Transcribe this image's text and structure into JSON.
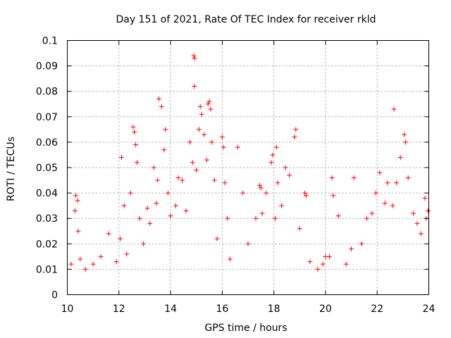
{
  "chart_data": {
    "type": "scatter",
    "title": "Day 151 of 2021, Rate Of TEC Index for receiver rkld",
    "xlabel": "GPS time / hours",
    "ylabel": "ROTI / TECUs",
    "xlim": [
      10,
      24
    ],
    "ylim": [
      0,
      0.1
    ],
    "x_ticks": [
      10,
      12,
      14,
      16,
      18,
      20,
      22,
      24
    ],
    "y_ticks": [
      0,
      0.01,
      0.02,
      0.03,
      0.04,
      0.05,
      0.06,
      0.07,
      0.08,
      0.09,
      0.1
    ],
    "x_tick_labels": [
      "10",
      "12",
      "14",
      "16",
      "18",
      "20",
      "22",
      "24"
    ],
    "y_tick_labels": [
      "0",
      "0.01",
      "0.02",
      "0.03",
      "0.04",
      "0.05",
      "0.06",
      "0.07",
      "0.08",
      "0.09",
      "0.1"
    ],
    "grid": true,
    "marker": "+",
    "marker_color": "#ff0000",
    "series": [
      {
        "name": "ROTI",
        "x": [
          10.15,
          10.3,
          10.33,
          10.4,
          10.42,
          10.5,
          10.7,
          11.0,
          11.3,
          11.6,
          11.9,
          12.05,
          12.1,
          12.2,
          12.3,
          12.45,
          12.55,
          12.6,
          12.65,
          12.7,
          12.8,
          12.95,
          13.1,
          13.2,
          13.35,
          13.45,
          13.5,
          13.55,
          13.65,
          13.75,
          13.8,
          13.9,
          14.0,
          14.2,
          14.3,
          14.45,
          14.6,
          14.75,
          14.85,
          14.9,
          14.92,
          14.93,
          15.0,
          15.1,
          15.15,
          15.2,
          15.3,
          15.4,
          15.45,
          15.5,
          15.55,
          15.6,
          15.7,
          15.8,
          16.0,
          16.05,
          16.1,
          16.2,
          16.3,
          16.6,
          16.8,
          17.0,
          17.3,
          17.45,
          17.5,
          17.55,
          17.7,
          17.9,
          17.95,
          18.05,
          18.1,
          18.15,
          18.3,
          18.45,
          18.6,
          18.8,
          18.85,
          19.0,
          19.2,
          19.25,
          19.4,
          19.7,
          19.9,
          20.0,
          20.15,
          20.25,
          20.3,
          20.5,
          20.8,
          21.0,
          21.1,
          21.4,
          21.6,
          21.8,
          21.95,
          22.1,
          22.3,
          22.4,
          22.6,
          22.65,
          22.75,
          22.9,
          23.05,
          23.1,
          23.2,
          23.4,
          23.55,
          23.7,
          23.85,
          23.9,
          23.97
        ],
        "y": [
          0.012,
          0.033,
          0.039,
          0.037,
          0.025,
          0.014,
          0.01,
          0.012,
          0.015,
          0.024,
          0.013,
          0.022,
          0.054,
          0.035,
          0.016,
          0.04,
          0.066,
          0.064,
          0.059,
          0.052,
          0.03,
          0.02,
          0.034,
          0.028,
          0.05,
          0.036,
          0.045,
          0.077,
          0.074,
          0.057,
          0.065,
          0.04,
          0.031,
          0.035,
          0.046,
          0.045,
          0.033,
          0.06,
          0.052,
          0.094,
          0.082,
          0.093,
          0.049,
          0.065,
          0.074,
          0.071,
          0.063,
          0.053,
          0.075,
          0.076,
          0.073,
          0.06,
          0.045,
          0.022,
          0.062,
          0.058,
          0.044,
          0.03,
          0.014,
          0.058,
          0.04,
          0.02,
          0.03,
          0.043,
          0.042,
          0.032,
          0.04,
          0.052,
          0.055,
          0.03,
          0.058,
          0.044,
          0.035,
          0.05,
          0.047,
          0.062,
          0.065,
          0.026,
          0.04,
          0.039,
          0.013,
          0.01,
          0.012,
          0.015,
          0.015,
          0.046,
          0.039,
          0.031,
          0.012,
          0.018,
          0.046,
          0.02,
          0.03,
          0.032,
          0.04,
          0.048,
          0.036,
          0.044,
          0.035,
          0.073,
          0.044,
          0.054,
          0.063,
          0.06,
          0.046,
          0.032,
          0.028,
          0.024,
          0.038,
          0.03,
          0.033
        ]
      }
    ]
  }
}
